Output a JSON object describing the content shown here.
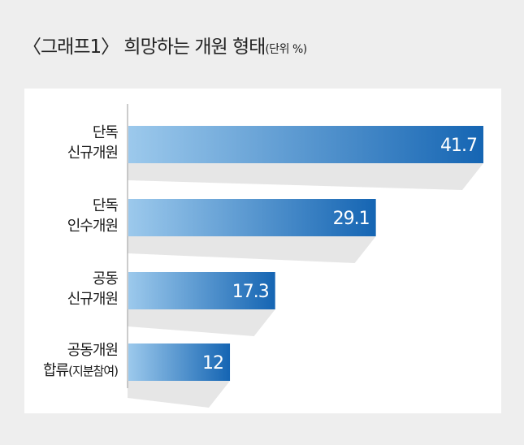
{
  "title": {
    "main": "〈그래프1〉 희망하는 개원 형태",
    "unit": "(단위 %)"
  },
  "chart_data": {
    "type": "bar",
    "orientation": "horizontal",
    "categories": [
      {
        "line1": "단독",
        "line2": "신규개원",
        "line2_note": ""
      },
      {
        "line1": "단독",
        "line2": "인수개원",
        "line2_note": ""
      },
      {
        "line1": "공동",
        "line2": "신규개원",
        "line2_note": ""
      },
      {
        "line1": "공동개원",
        "line2": "합류",
        "line2_note": "(지분참여)"
      }
    ],
    "values": [
      41.7,
      29.1,
      17.3,
      12
    ],
    "value_labels": [
      "41.7",
      "29.1",
      "17.3",
      "12"
    ],
    "xlim": [
      0,
      41.7
    ],
    "colors": {
      "bar_start": "#9cc9ec",
      "bar_end": "#1565b3",
      "shadow": "#e6e6e6",
      "axis": "#9a9a9a"
    },
    "legend": "none",
    "grid": false
  }
}
